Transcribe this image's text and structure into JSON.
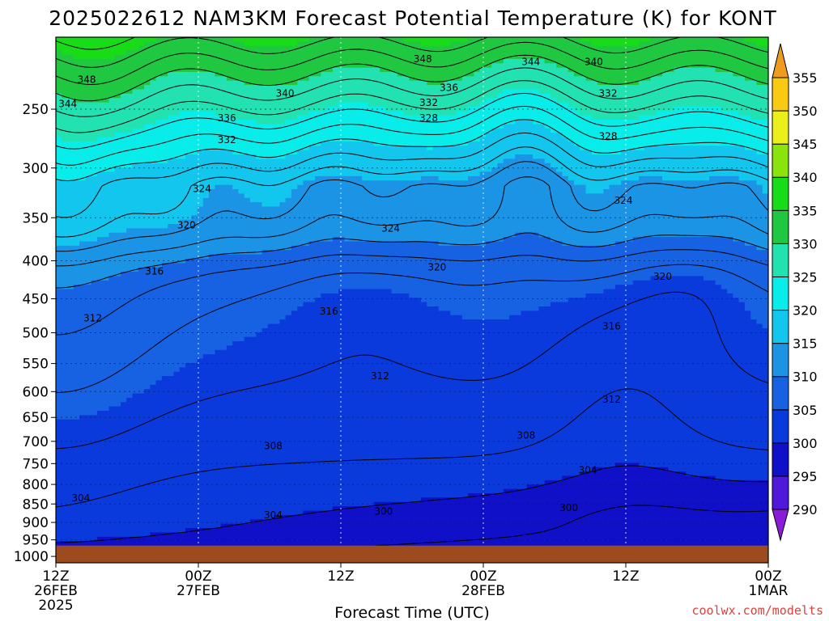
{
  "chart_data": {
    "type": "heatmap",
    "title": "2025022612 NAM3KM Forecast Potential Temperature (K) for KONT",
    "xlabel": "Forecast Time (UTC)",
    "credit": "coolwx.com/modelts",
    "x_ticks": [
      {
        "hour": 0,
        "lines": [
          "12Z",
          "26FEB",
          "2025"
        ]
      },
      {
        "hour": 12,
        "lines": [
          "00Z",
          "27FEB"
        ]
      },
      {
        "hour": 24,
        "lines": [
          "12Z"
        ]
      },
      {
        "hour": 36,
        "lines": [
          "00Z",
          "28FEB"
        ]
      },
      {
        "hour": 48,
        "lines": [
          "12Z"
        ]
      },
      {
        "hour": 60,
        "lines": [
          "00Z",
          "1MAR"
        ]
      }
    ],
    "xlim_hours": [
      0,
      60
    ],
    "y_axis": {
      "scale": "log-pressure",
      "units": "hPa",
      "ticks": [
        "250",
        "300",
        "350",
        "400",
        "450",
        "500",
        "550",
        "600",
        "650",
        "700",
        "750",
        "800",
        "850",
        "900",
        "950",
        "1000"
      ],
      "ylim": [
        200,
        1020
      ]
    },
    "surface_pressure_hPa": 967,
    "surface_color": "#9c4a1e",
    "colorbar": {
      "levels": [
        285,
        290,
        295,
        300,
        305,
        310,
        315,
        320,
        325,
        330,
        335,
        340,
        345,
        350,
        355,
        360
      ],
      "labels": [
        "290",
        "295",
        "300",
        "305",
        "310",
        "315",
        "320",
        "325",
        "330",
        "335",
        "340",
        "345",
        "350",
        "355"
      ],
      "colors": [
        "#8a1cd8",
        "#5018d8",
        "#1010c8",
        "#0a3adc",
        "#1662e2",
        "#1c94e6",
        "#12c6ee",
        "#08ecea",
        "#22e2b2",
        "#20c842",
        "#18dc18",
        "#8ae40c",
        "#ecf01a",
        "#f8ca12",
        "#ee9b1e"
      ]
    },
    "contour_labels": [
      {
        "text": "348",
        "hour": 2.6,
        "p": 228
      },
      {
        "text": "344",
        "hour": 1.0,
        "p": 246
      },
      {
        "text": "340",
        "hour": 19.3,
        "p": 238
      },
      {
        "text": "336",
        "hour": 14.4,
        "p": 257
      },
      {
        "text": "332",
        "hour": 14.4,
        "p": 275
      },
      {
        "text": "348",
        "hour": 30.9,
        "p": 214
      },
      {
        "text": "344",
        "hour": 40.0,
        "p": 216
      },
      {
        "text": "340",
        "hour": 45.3,
        "p": 216
      },
      {
        "text": "336",
        "hour": 33.1,
        "p": 234
      },
      {
        "text": "332",
        "hour": 31.4,
        "p": 245
      },
      {
        "text": "328",
        "hour": 31.4,
        "p": 257
      },
      {
        "text": "332",
        "hour": 46.5,
        "p": 238
      },
      {
        "text": "328",
        "hour": 46.5,
        "p": 272
      },
      {
        "text": "324",
        "hour": 12.3,
        "p": 320
      },
      {
        "text": "320",
        "hour": 11.0,
        "p": 358
      },
      {
        "text": "324",
        "hour": 28.2,
        "p": 362
      },
      {
        "text": "324",
        "hour": 47.8,
        "p": 332
      },
      {
        "text": "320",
        "hour": 32.1,
        "p": 408
      },
      {
        "text": "320",
        "hour": 51.1,
        "p": 420
      },
      {
        "text": "316",
        "hour": 8.3,
        "p": 413
      },
      {
        "text": "316",
        "hour": 23.0,
        "p": 468
      },
      {
        "text": "316",
        "hour": 46.8,
        "p": 490
      },
      {
        "text": "312",
        "hour": 3.1,
        "p": 478
      },
      {
        "text": "312",
        "hour": 27.3,
        "p": 572
      },
      {
        "text": "312",
        "hour": 46.8,
        "p": 615
      },
      {
        "text": "308",
        "hour": 18.3,
        "p": 710
      },
      {
        "text": "308",
        "hour": 39.6,
        "p": 687
      },
      {
        "text": "304",
        "hour": 2.1,
        "p": 835
      },
      {
        "text": "304",
        "hour": 18.3,
        "p": 880
      },
      {
        "text": "304",
        "hour": 44.8,
        "p": 766
      },
      {
        "text": "300",
        "hour": 27.6,
        "p": 870
      },
      {
        "text": "300",
        "hour": 43.2,
        "p": 860
      }
    ]
  }
}
